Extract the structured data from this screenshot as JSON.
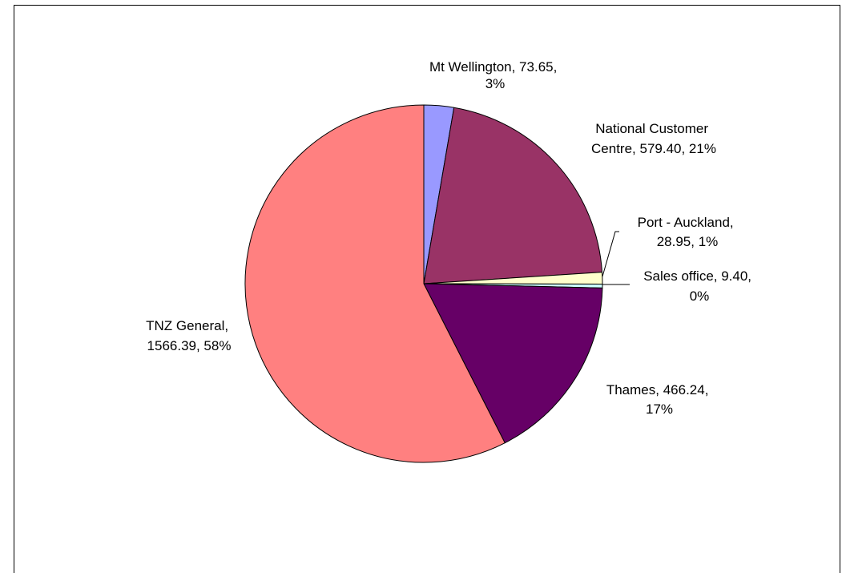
{
  "chart_data": {
    "type": "pie",
    "start_angle_deg": 0,
    "direction": "clockwise",
    "legend": "none",
    "slices": [
      {
        "label": "Mt Wellington",
        "value": 73.65,
        "value_text": "73.65",
        "percent_text": "3%",
        "color": "#9999ff"
      },
      {
        "label": "National Customer Centre",
        "value": 579.4,
        "value_text": "579.40",
        "percent_text": "21%",
        "color": "#993366"
      },
      {
        "label": "Port - Auckland",
        "value": 28.95,
        "value_text": "28.95",
        "percent_text": "1%",
        "color": "#ffffcc"
      },
      {
        "label": "Sales office",
        "value": 9.4,
        "value_text": "9.40",
        "percent_text": "0%",
        "color": "#ccffff"
      },
      {
        "label": "Thames",
        "value": 466.24,
        "value_text": "466.24",
        "percent_text": "17%",
        "color": "#660066"
      },
      {
        "label": "TNZ General",
        "value": 1566.39,
        "value_text": "1566.39",
        "percent_text": "58%",
        "color": "#ff8080"
      }
    ],
    "data_labels": [
      {
        "lines": [
          "Mt Wellington, 73.65,",
          "3%"
        ]
      },
      {
        "lines": [
          "National Customer",
          "Centre, 579.40, 21%"
        ]
      },
      {
        "lines": [
          "Port - Auckland,",
          "28.95, 1%"
        ]
      },
      {
        "lines": [
          "Sales office, 9.40,",
          "0%"
        ]
      },
      {
        "lines": [
          "Thames, 466.24,",
          "17%"
        ]
      },
      {
        "lines": [
          "TNZ General,",
          "1566.39, 58%"
        ]
      }
    ]
  }
}
